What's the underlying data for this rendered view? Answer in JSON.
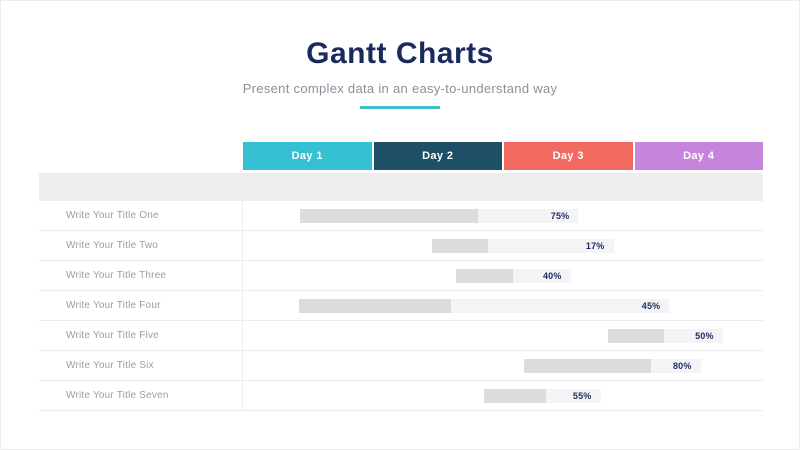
{
  "header": {
    "title": "Gantt Charts",
    "subtitle": "Present complex data in an easy-to-understand way"
  },
  "colors": {
    "title": "#1b2a5e",
    "subtitle": "#8d8f98",
    "accent": "#45bece",
    "band": "#ededef",
    "divider": "#ececee",
    "row-label": "#9b9da5",
    "bar-bg": "#f4f4f6",
    "bar-fill": "#dcdcde",
    "percent": "#1b2a5e"
  },
  "chart_data": {
    "type": "gantt",
    "title": "Gantt Charts",
    "subtitle": "Present complex data in an easy-to-understand way",
    "timeline_total_days": 4,
    "columns": [
      {
        "label": "Day 1",
        "color": "#35c0d4"
      },
      {
        "label": "Day 2",
        "color": "#1d4f66"
      },
      {
        "label": "Day 3",
        "color": "#f2695f"
      },
      {
        "label": "Day 4",
        "color": "#c684dc"
      }
    ],
    "rows": [
      {
        "label": "Write Your Title One",
        "percent": "75%",
        "percent_value": 75,
        "start_day": 0.44,
        "end_day": 2.58,
        "fill_fraction": 0.64
      },
      {
        "label": "Write Your Title Two",
        "percent": "17%",
        "percent_value": 17,
        "start_day": 1.45,
        "end_day": 2.85,
        "fill_fraction": 0.31
      },
      {
        "label": "Write Your Title Three",
        "percent": "40%",
        "percent_value": 40,
        "start_day": 1.64,
        "end_day": 2.52,
        "fill_fraction": 0.5
      },
      {
        "label": "Write Your Title Four",
        "percent": "45%",
        "percent_value": 45,
        "start_day": 0.43,
        "end_day": 3.28,
        "fill_fraction": 0.41
      },
      {
        "label": "Write Your Title Five",
        "percent": "50%",
        "percent_value": 50,
        "start_day": 2.81,
        "end_day": 3.69,
        "fill_fraction": 0.49
      },
      {
        "label": "Write Your Title Six",
        "percent": "80%",
        "percent_value": 80,
        "start_day": 2.16,
        "end_day": 3.52,
        "fill_fraction": 0.72
      },
      {
        "label": "Write Your Title Seven",
        "percent": "55%",
        "percent_value": 55,
        "start_day": 1.85,
        "end_day": 2.75,
        "fill_fraction": 0.53
      }
    ]
  }
}
